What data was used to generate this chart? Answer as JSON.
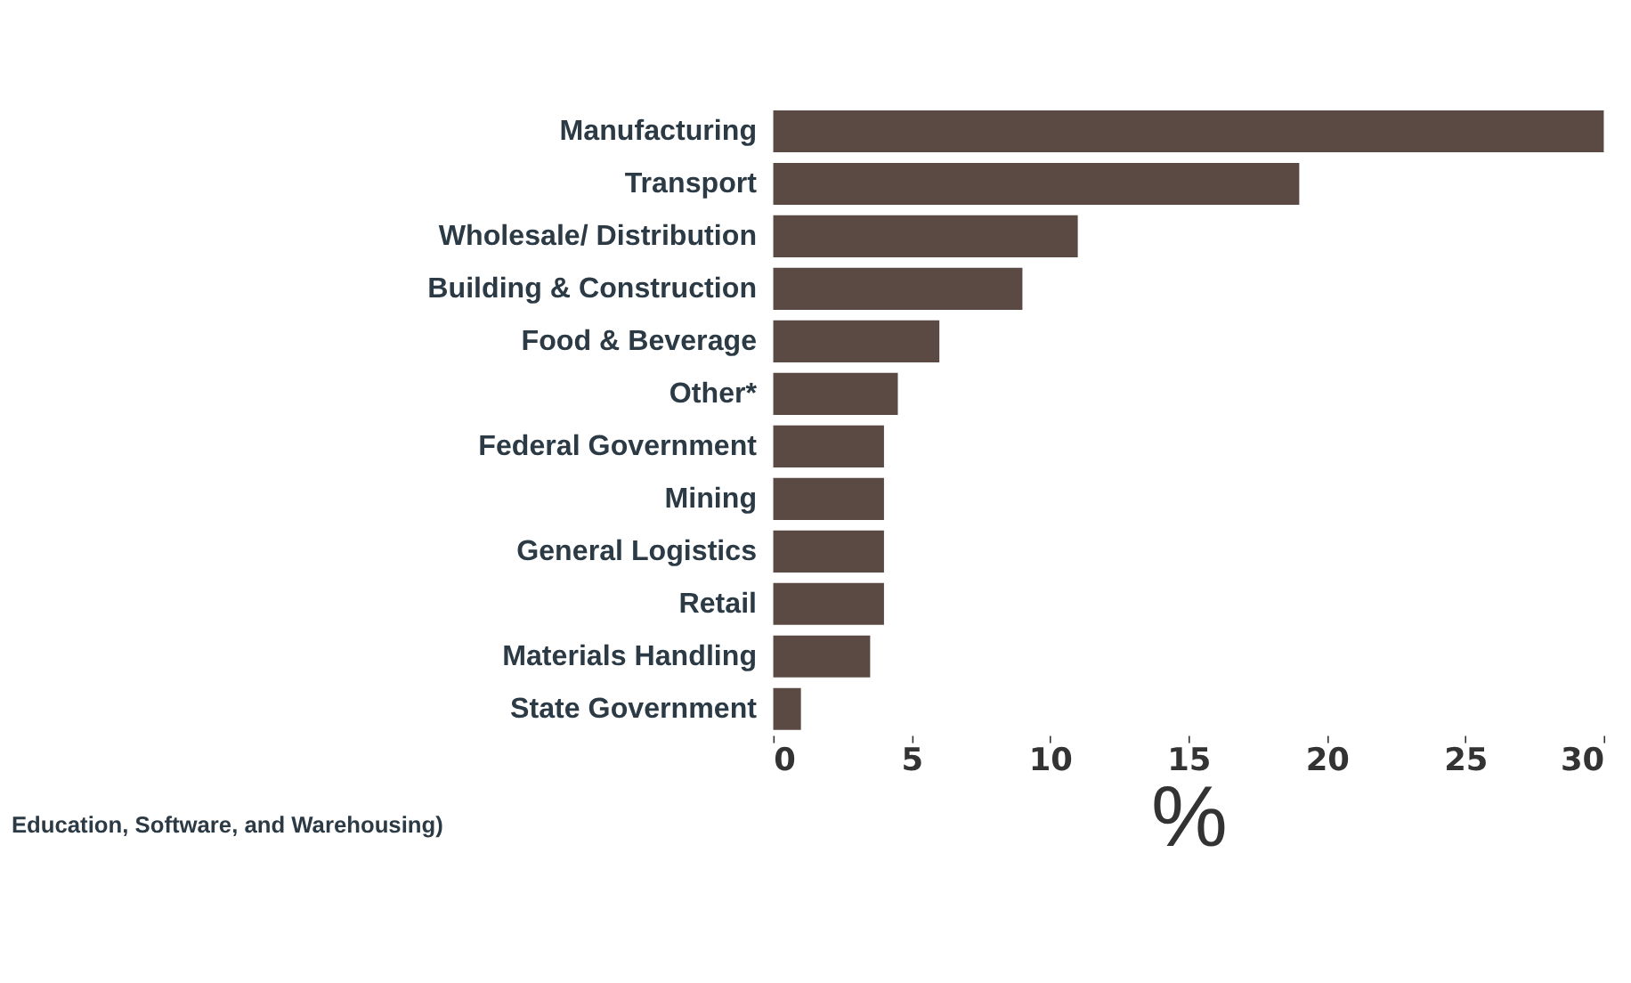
{
  "chart_data": {
    "type": "bar",
    "orientation": "horizontal",
    "categories": [
      "Manufacturing",
      "Transport",
      "Wholesale/ Distribution",
      "Building & Construction",
      "Food & Beverage",
      "Other*",
      "Federal Government",
      "Mining",
      "General Logistics",
      "Retail",
      "Materials Handling",
      "State Government"
    ],
    "values": [
      30,
      19,
      11,
      9,
      6,
      4.5,
      4,
      4,
      4,
      4,
      3.5,
      1
    ],
    "color": "#5b4a43",
    "xlim": [
      0,
      30
    ],
    "xticks": [
      0,
      5,
      10,
      15,
      20,
      25,
      30
    ],
    "xlabel": "%",
    "annotations": [
      "Education, Software, and Warehousing)"
    ],
    "grid": false
  }
}
